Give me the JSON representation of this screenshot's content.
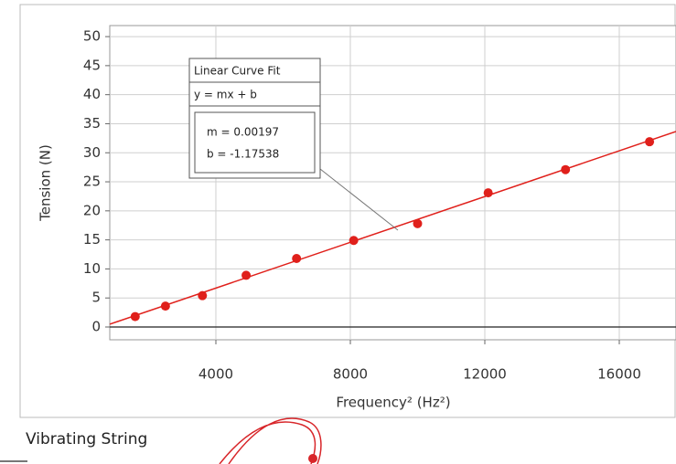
{
  "chart_data": {
    "type": "scatter",
    "x_label": "Frequency² (Hz²)",
    "y_label": "Tension (N)",
    "x": [
      1600,
      2500,
      3600,
      4900,
      6400,
      8100,
      10000,
      12100,
      14400,
      16900
    ],
    "series": [
      {
        "color": "#e0201b",
        "values": [
          1.8,
          3.6,
          5.4,
          8.9,
          11.8,
          14.9,
          17.8,
          23.1,
          27.1,
          31.9
        ]
      }
    ],
    "xlim": [
      844,
      17687
    ],
    "ylim": [
      -2.2,
      51.9
    ],
    "xticks": [
      4000,
      8000,
      12000,
      16000
    ],
    "yticks": [
      0,
      5,
      10,
      15,
      20,
      25,
      30,
      35,
      40,
      45,
      50
    ],
    "grid": true,
    "fit": {
      "title": "Linear Curve Fit",
      "equation": "y = mx + b",
      "m": {
        "value": 0.00197,
        "label": "m = 0.00197"
      },
      "b": {
        "value": -1.17538,
        "label": "b = -1.17538"
      },
      "color": "#e0201b"
    },
    "caption": "Vibrating String"
  }
}
